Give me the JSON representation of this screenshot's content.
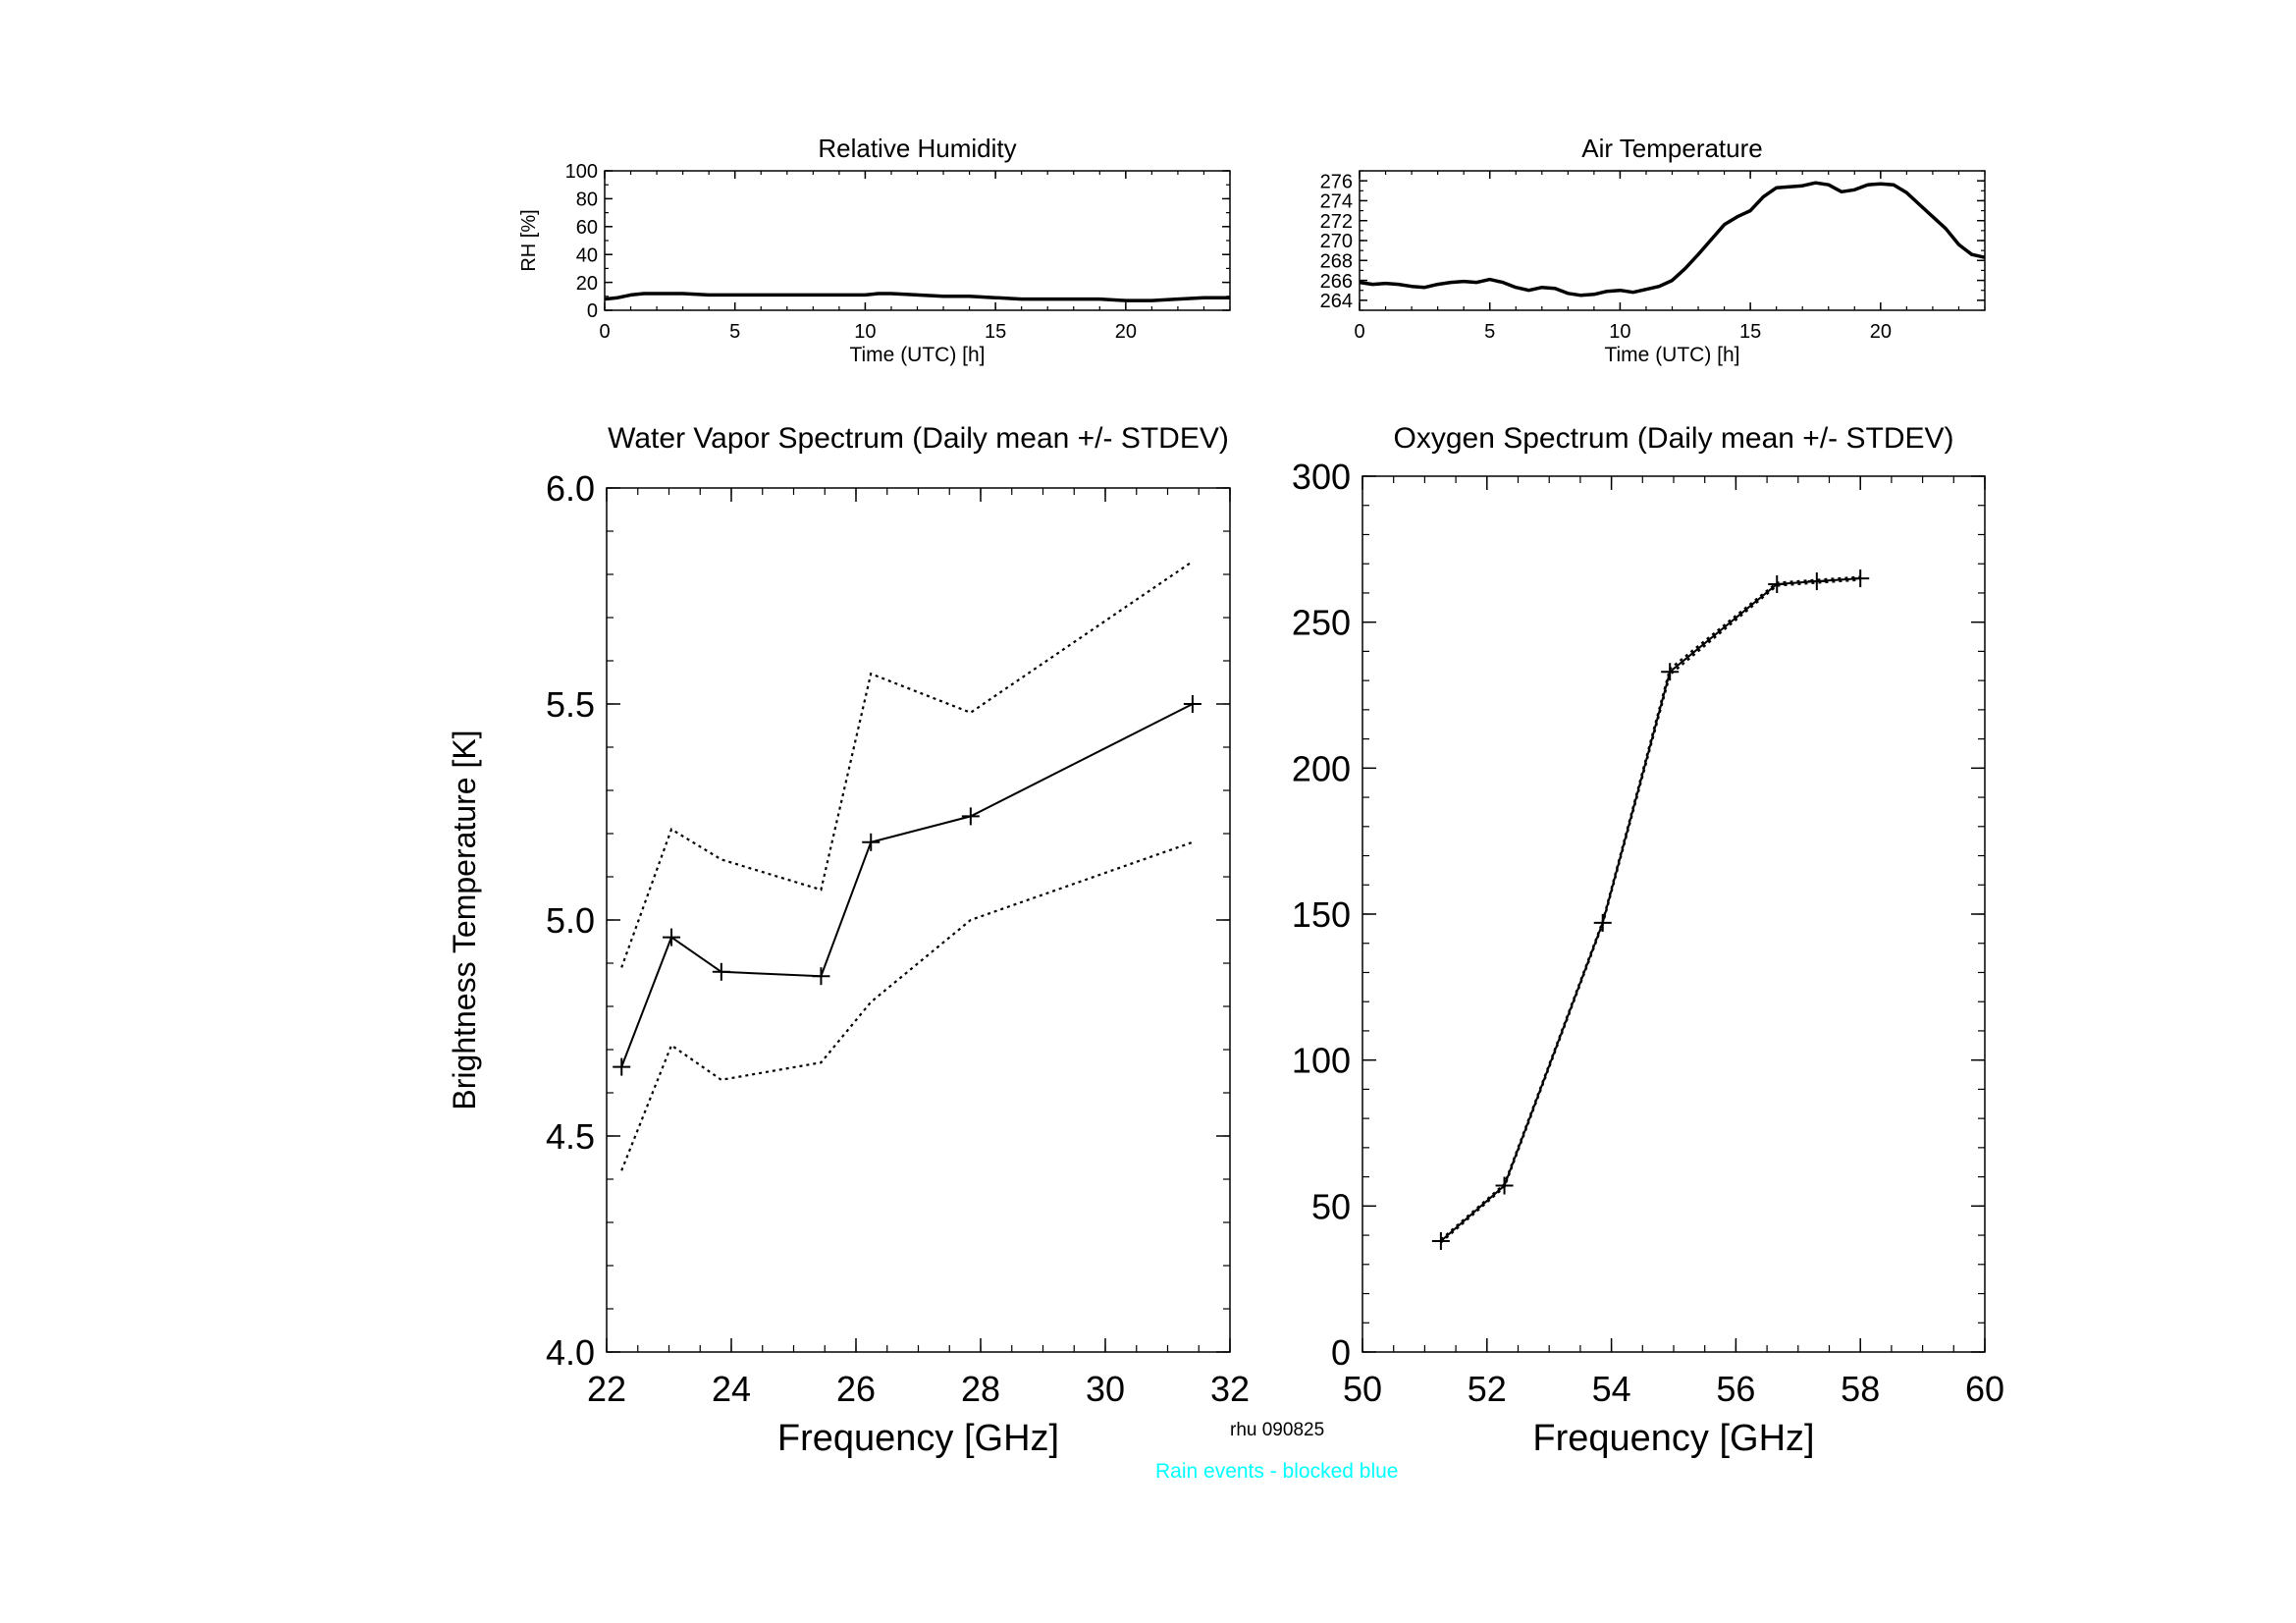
{
  "footer": {
    "station_label": "rhu 090825",
    "rain_note": "Rain events - blocked blue",
    "rain_note_color": "#00ffff"
  },
  "chart_data": [
    {
      "id": "rh",
      "type": "line",
      "title": "Relative Humidity",
      "xlabel": "Time (UTC) [h]",
      "ylabel": "RH [%]",
      "xlim": [
        0,
        24
      ],
      "ylim": [
        0,
        100
      ],
      "xticks": [
        0,
        5,
        10,
        15,
        20
      ],
      "yticks": [
        0,
        20,
        40,
        60,
        80,
        100
      ],
      "series": [
        {
          "x": [
            0,
            0.5,
            1,
            1.5,
            2,
            3,
            4,
            5,
            6,
            7,
            8,
            9,
            10,
            10.5,
            11,
            12,
            13,
            14,
            15,
            16,
            17,
            18,
            19,
            20,
            21,
            22,
            23,
            24
          ],
          "values": [
            8,
            9,
            11,
            12,
            12,
            12,
            11,
            11,
            11,
            11,
            11,
            11,
            11,
            12,
            12,
            11,
            10,
            10,
            9,
            8,
            8,
            8,
            8,
            7,
            7,
            8,
            9,
            9
          ]
        }
      ]
    },
    {
      "id": "temp",
      "type": "line",
      "title": "Air Temperature",
      "xlim": [
        0,
        24
      ],
      "ylim": [
        263,
        277
      ],
      "xlabel": "Time (UTC) [h]",
      "ylabel": "",
      "xticks": [
        0,
        5,
        10,
        15,
        20
      ],
      "yticks": [
        264,
        266,
        268,
        270,
        272,
        274,
        276
      ],
      "series": [
        {
          "x": [
            0,
            0.5,
            1,
            1.5,
            2,
            2.5,
            3,
            3.5,
            4,
            4.5,
            5,
            5.5,
            6,
            6.5,
            7,
            7.5,
            8,
            8.5,
            9,
            9.5,
            10,
            10.5,
            11,
            11.5,
            12,
            12.5,
            13,
            13.5,
            14,
            14.5,
            15,
            15.5,
            16,
            16.5,
            17,
            17.5,
            18,
            18.5,
            19,
            19.5,
            20,
            20.5,
            21,
            21.5,
            22,
            22.5,
            23,
            23.5,
            24
          ],
          "values": [
            265.8,
            265.6,
            265.7,
            265.6,
            265.4,
            265.3,
            265.6,
            265.8,
            265.9,
            265.8,
            266.1,
            265.8,
            265.3,
            265.0,
            265.3,
            265.2,
            264.7,
            264.5,
            264.6,
            264.9,
            265.0,
            264.8,
            265.1,
            265.4,
            266.0,
            267.2,
            268.6,
            270.1,
            271.6,
            272.4,
            273.0,
            274.4,
            275.3,
            275.4,
            275.5,
            275.8,
            275.6,
            274.9,
            275.1,
            275.6,
            275.7,
            275.6,
            274.8,
            273.6,
            272.4,
            271.2,
            269.6,
            268.6,
            268.3
          ]
        }
      ]
    },
    {
      "id": "wv",
      "type": "line",
      "title": "Water Vapor Spectrum (Daily mean +/- STDEV)",
      "xlabel": "Frequency [GHz]",
      "ylabel": "Brightness Temperature [K]",
      "xlim": [
        22,
        32
      ],
      "ylim": [
        4.0,
        6.0
      ],
      "xticks": [
        22,
        24,
        26,
        28,
        30,
        32
      ],
      "yticks": [
        4.0,
        4.5,
        5.0,
        5.5,
        6.0
      ],
      "ytick_labels": [
        "4.0",
        "4.5",
        "5.0",
        "5.5",
        "6.0"
      ],
      "x": [
        22.24,
        23.04,
        23.84,
        25.44,
        26.24,
        27.84,
        31.4
      ],
      "mean": [
        4.66,
        4.96,
        4.88,
        4.87,
        5.18,
        5.24,
        5.5
      ],
      "upper": [
        4.89,
        5.21,
        5.14,
        5.07,
        5.57,
        5.48,
        5.83
      ],
      "lower": [
        4.42,
        4.71,
        4.63,
        4.67,
        4.81,
        5.0,
        5.18
      ]
    },
    {
      "id": "oxy",
      "type": "line",
      "title": "Oxygen Spectrum (Daily mean +/- STDEV)",
      "xlabel": "Frequency [GHz]",
      "ylabel": "",
      "xlim": [
        50,
        60
      ],
      "ylim": [
        0,
        300
      ],
      "xticks": [
        50,
        52,
        54,
        56,
        58,
        60
      ],
      "yticks": [
        0,
        50,
        100,
        150,
        200,
        250,
        300
      ],
      "x": [
        51.26,
        52.28,
        53.86,
        54.94,
        56.66,
        57.3,
        58.0
      ],
      "mean": [
        38,
        57,
        147,
        233,
        263,
        264,
        265
      ],
      "upper": [
        38.5,
        57.5,
        147.5,
        234,
        263.5,
        264.5,
        265.5
      ],
      "lower": [
        37.5,
        56.5,
        146.5,
        232,
        262.5,
        263.5,
        264.5
      ]
    }
  ]
}
